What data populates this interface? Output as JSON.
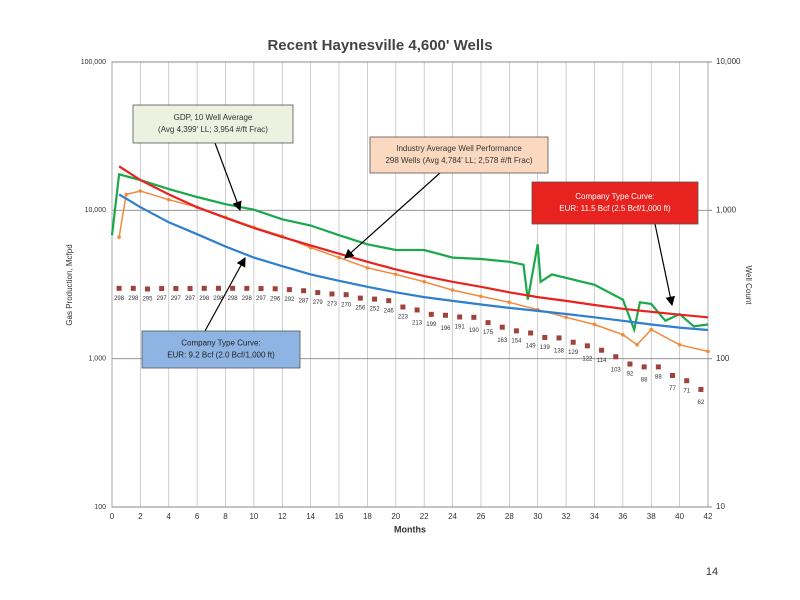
{
  "chart_data": {
    "type": "line",
    "title": "Recent Haynesville 4,600' Wells",
    "xlabel": "Months",
    "ylabel": "Gas Production, Mcfpd",
    "y2label": "Well Count",
    "page_number": "14",
    "log_y": true,
    "grid": true,
    "xlim": [
      0,
      42
    ],
    "xticks": [
      0,
      2,
      4,
      6,
      8,
      10,
      12,
      14,
      16,
      18,
      20,
      22,
      24,
      26,
      28,
      30,
      32,
      34,
      36,
      38,
      40,
      42
    ],
    "ylim": [
      100,
      100000
    ],
    "yticks": [
      100,
      {
        "value": 1000,
        "label": "1,000"
      },
      {
        "value": 10000,
        "label": "10,000"
      },
      {
        "value": 100000,
        "label": "100,000"
      }
    ],
    "y2lim": [
      10,
      10000
    ],
    "y2ticks": [
      10,
      100,
      {
        "value": 1000,
        "label": "1,000"
      },
      {
        "value": 10000,
        "label": "10,000"
      }
    ],
    "series": [
      {
        "color": "#1aa84a",
        "x": [
          0,
          0.5,
          2,
          4,
          6,
          8,
          10,
          12,
          14,
          16,
          18,
          20,
          22,
          24,
          26,
          28,
          29,
          29.3,
          30,
          30.2,
          31,
          34,
          36,
          36.8,
          37.2,
          38,
          39,
          40,
          41,
          42
        ],
        "values": [
          6800,
          17500,
          16000,
          13900,
          12300,
          11000,
          10100,
          8700,
          7900,
          6800,
          5900,
          5400,
          5400,
          4800,
          4700,
          4500,
          4300,
          2500,
          5900,
          3300,
          3700,
          3150,
          2500,
          1570,
          2400,
          2340,
          1800,
          2000,
          1650,
          1700
        ]
      },
      {
        "color": "#f08a3c",
        "marker": "circle",
        "x": [
          0.5,
          1,
          2,
          4,
          6,
          8,
          10,
          12,
          14,
          16,
          18,
          20,
          22,
          24,
          26,
          28,
          30,
          32,
          34,
          36,
          37,
          38,
          40,
          42
        ],
        "values": [
          6600,
          12800,
          13500,
          11800,
          10500,
          9000,
          7700,
          6700,
          5600,
          4800,
          4100,
          3700,
          3300,
          2900,
          2630,
          2400,
          2140,
          1900,
          1700,
          1450,
          1240,
          1570,
          1240,
          1120
        ]
      },
      {
        "color": "#e8231f",
        "x": [
          0.5,
          2,
          4,
          6,
          8,
          10,
          12,
          14,
          16,
          18,
          20,
          22,
          24,
          26,
          28,
          30,
          32,
          34,
          36,
          38,
          40,
          42
        ],
        "values": [
          19800,
          16000,
          12800,
          10500,
          8900,
          7600,
          6600,
          5800,
          5100,
          4500,
          4000,
          3600,
          3300,
          3050,
          2800,
          2600,
          2450,
          2300,
          2170,
          2070,
          1980,
          1900
        ]
      },
      {
        "color": "#2f7fcf",
        "x": [
          0.5,
          2,
          4,
          6,
          8,
          10,
          12,
          14,
          16,
          18,
          20,
          22,
          24,
          26,
          28,
          30,
          32,
          34,
          36,
          38,
          40,
          42
        ],
        "values": [
          12800,
          10500,
          8300,
          6900,
          5700,
          4800,
          4200,
          3700,
          3350,
          3050,
          2800,
          2600,
          2450,
          2320,
          2200,
          2100,
          2000,
          1900,
          1800,
          1700,
          1620,
          1560
        ]
      },
      {
        "color": "#a0413c",
        "marker": "square",
        "axis": "y2",
        "data_labels": true,
        "x": [
          0.5,
          1.5,
          2.5,
          3.5,
          4.5,
          5.5,
          6.5,
          7.5,
          8.5,
          9.5,
          10.5,
          11.5,
          12.5,
          13.5,
          14.5,
          15.5,
          16.5,
          17.5,
          18.5,
          19.5,
          20.5,
          21.5,
          22.5,
          23.5,
          24.5,
          25.5,
          26.5,
          27.5,
          28.5,
          29.5,
          30.5,
          31.5,
          32.5,
          33.5,
          34.5,
          35.5,
          36.5,
          37.5,
          38.5,
          39.5,
          40.5,
          41.5
        ],
        "values": [
          298,
          298,
          295,
          297,
          297,
          297,
          298,
          298,
          298,
          298,
          297,
          296,
          292,
          287,
          279,
          273,
          270,
          256,
          252,
          246,
          223,
          213,
          199,
          196,
          191,
          190,
          175,
          163,
          154,
          149,
          139,
          138,
          129,
          122,
          114,
          103,
          92,
          88,
          88,
          77,
          71,
          62
        ]
      }
    ],
    "annotations": [
      {
        "lines": [
          "GDP, 10 Well Average",
          "(Avg 4,399' LL; 3,954 #/ft Frac)"
        ]
      },
      {
        "lines": [
          "Industry Average Well Performance",
          "298 Wells (Avg 4,784' LL; 2,578 #/ft Frac)"
        ]
      },
      {
        "lines": [
          "Company Type Curve:",
          "EUR: 11.5 Bcf (2.5 Bcf/1,000 ft)"
        ]
      },
      {
        "lines": [
          "Company Type Curve:",
          "EUR: 9.2 Bcf (2.0 Bcf/1,000 ft)"
        ]
      }
    ]
  }
}
